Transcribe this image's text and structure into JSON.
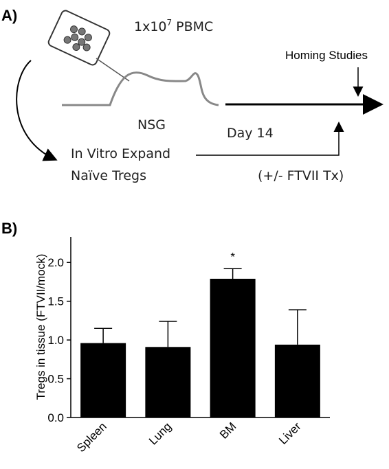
{
  "panel_a": {
    "label": "A)",
    "pbmc": {
      "base": "1x10",
      "exponent": "7",
      "unit": "PBMC"
    },
    "homing": "Homing Studies",
    "mouse": "NSG",
    "day": "Day 14",
    "expand_line1": "In Vitro Expand",
    "expand_line2": "Naïve Tregs",
    "treatment": "(+/- FTVII Tx)"
  },
  "panel_b": {
    "label": "B)"
  },
  "chart_data": {
    "type": "bar",
    "y_label": "Tregs in tissue (FTVII/mock)",
    "categories": [
      "Spleen",
      "Lung",
      "BM",
      "Liver"
    ],
    "values": [
      0.96,
      0.91,
      1.79,
      0.94
    ],
    "errors": [
      0.19,
      0.33,
      0.13,
      0.45
    ],
    "significance": [
      null,
      null,
      "*",
      null
    ],
    "color": "#000000",
    "ylim": [
      0,
      2.33
    ],
    "yticks": [
      {
        "value": 0,
        "label": "0.0"
      },
      {
        "value": 0.5,
        "label": "0.5"
      },
      {
        "value": 1,
        "label": "1.0"
      },
      {
        "value": 1.5,
        "label": "1.5"
      },
      {
        "value": 2,
        "label": "2.0"
      }
    ]
  }
}
